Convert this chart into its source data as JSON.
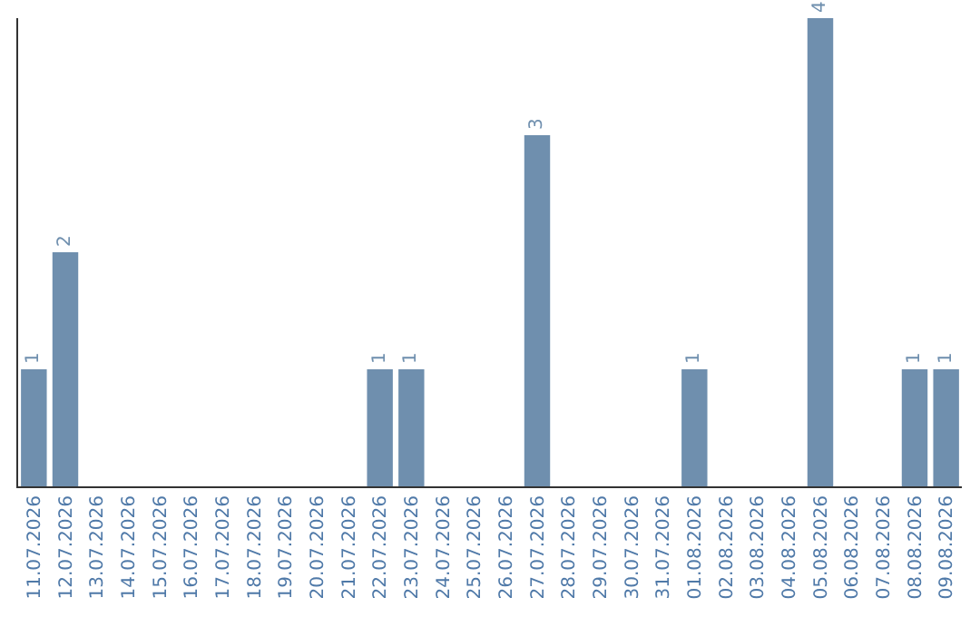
{
  "chart_data": {
    "type": "bar",
    "categories": [
      "11.07.2026",
      "12.07.2026",
      "13.07.2026",
      "14.07.2026",
      "15.07.2026",
      "16.07.2026",
      "17.07.2026",
      "18.07.2026",
      "19.07.2026",
      "20.07.2026",
      "21.07.2026",
      "22.07.2026",
      "23.07.2026",
      "24.07.2026",
      "25.07.2026",
      "26.07.2026",
      "27.07.2026",
      "28.07.2026",
      "29.07.2026",
      "30.07.2026",
      "31.07.2026",
      "01.08.2026",
      "02.08.2026",
      "03.08.2026",
      "04.08.2026",
      "05.08.2026",
      "06.08.2026",
      "07.08.2026",
      "08.08.2026",
      "09.08.2026"
    ],
    "values": [
      1,
      2,
      0,
      0,
      0,
      0,
      0,
      0,
      0,
      0,
      0,
      1,
      1,
      0,
      0,
      0,
      3,
      0,
      0,
      0,
      0,
      1,
      0,
      0,
      0,
      4,
      0,
      0,
      1,
      1
    ],
    "value_labels": [
      "1",
      "2",
      null,
      null,
      null,
      null,
      null,
      null,
      null,
      null,
      null,
      "1",
      "1",
      null,
      null,
      null,
      "3",
      null,
      null,
      null,
      null,
      "1",
      null,
      null,
      null,
      "4",
      null,
      null,
      "1",
      "1"
    ],
    "color": "#6f8fae",
    "ylim": [
      0,
      4
    ],
    "tick_labels": "x",
    "grid": false
  }
}
